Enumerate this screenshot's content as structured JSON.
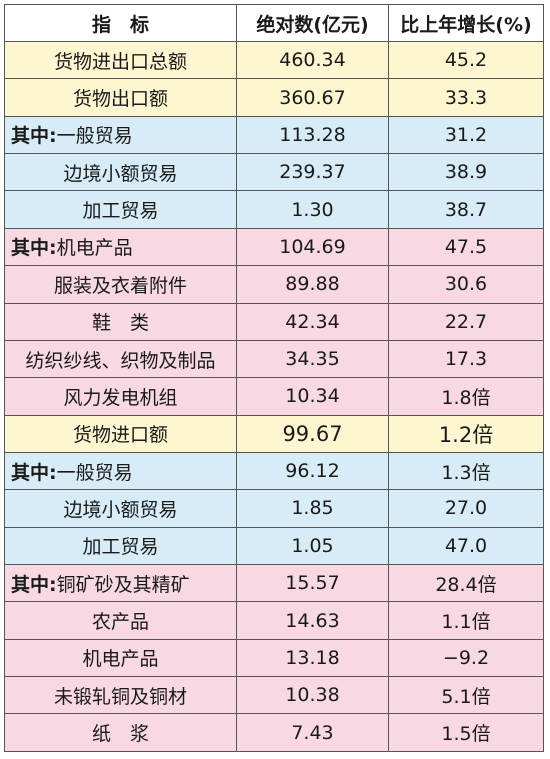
{
  "header": {
    "col_indicator": "指　标",
    "col_absolute": "绝对数(亿元)",
    "col_growth": "比上年增长(%)"
  },
  "rows": [
    {
      "prefix": "",
      "label": "货物进出口总额",
      "value": "460.34",
      "growth": "45.2",
      "color": "yellow"
    },
    {
      "prefix": "",
      "label": "货物出口额",
      "value": "360.67",
      "growth": "33.3",
      "color": "yellow"
    },
    {
      "prefix": "其中:",
      "label": "一般贸易",
      "value": "113.28",
      "growth": "31.2",
      "color": "blue"
    },
    {
      "prefix": "",
      "label": "边境小额贸易",
      "value": "239.37",
      "growth": "38.9",
      "color": "blue"
    },
    {
      "prefix": "",
      "label": "加工贸易",
      "value": "1.30",
      "growth": "38.7",
      "color": "blue"
    },
    {
      "prefix": "其中:",
      "label": "机电产品",
      "value": "104.69",
      "growth": "47.5",
      "color": "pink"
    },
    {
      "prefix": "",
      "label": "服装及衣着附件",
      "value": "89.88",
      "growth": "30.6",
      "color": "pink"
    },
    {
      "prefix": "",
      "label": "鞋　类",
      "value": "42.34",
      "growth": "22.7",
      "color": "pink"
    },
    {
      "prefix": "",
      "label": "纺织纱线、织物及制品",
      "value": "34.35",
      "growth": "17.3",
      "color": "pink"
    },
    {
      "prefix": "",
      "label": "风力发电机组",
      "value": "10.34",
      "growth": "1.8倍",
      "color": "pink"
    },
    {
      "prefix": "",
      "label": "货物进口额",
      "value": "99.67",
      "growth": "1.2倍",
      "color": "yellow"
    },
    {
      "prefix": "其中:",
      "label": "一般贸易",
      "value": "96.12",
      "growth": "1.3倍",
      "color": "blue"
    },
    {
      "prefix": "",
      "label": "边境小额贸易",
      "value": "1.85",
      "growth": "27.0",
      "color": "blue"
    },
    {
      "prefix": "",
      "label": "加工贸易",
      "value": "1.05",
      "growth": "47.0",
      "color": "blue"
    },
    {
      "prefix": "其中:",
      "label": "铜矿砂及其精矿",
      "value": "15.57",
      "growth": "28.4倍",
      "color": "pink"
    },
    {
      "prefix": "",
      "label": "农产品",
      "value": "14.63",
      "growth": "1.1倍",
      "color": "pink"
    },
    {
      "prefix": "",
      "label": "机电产品",
      "value": "13.18",
      "growth": "−9.2",
      "color": "pink"
    },
    {
      "prefix": "",
      "label": "未锻轧铜及铜材",
      "value": "10.38",
      "growth": "5.1倍",
      "color": "pink"
    },
    {
      "prefix": "",
      "label": "纸　浆",
      "value": "7.43",
      "growth": "1.5倍",
      "color": "pink"
    }
  ]
}
